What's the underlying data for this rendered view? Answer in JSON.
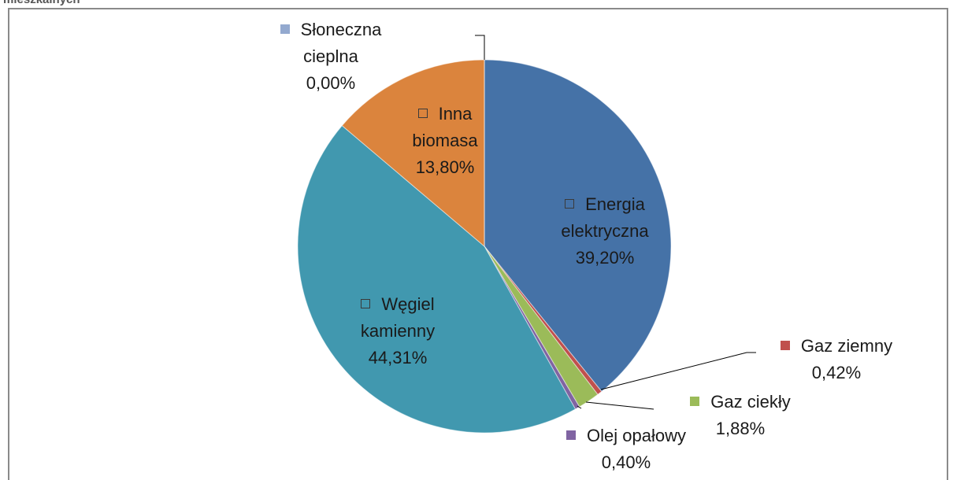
{
  "chart_data": {
    "type": "pie",
    "title": "mieszkalnych",
    "categories": [
      "Energia elektryczna",
      "Gaz ziemny",
      "Gaz ciekły",
      "Olej opałowy",
      "Węgiel kamienny",
      "Inna biomasa",
      "Słoneczna cieplna"
    ],
    "values": [
      39.2,
      0.42,
      1.88,
      0.4,
      44.31,
      13.8,
      0.0
    ],
    "value_labels": [
      "39,20%",
      "0,42%",
      "1,88%",
      "0,40%",
      "44,31%",
      "13,80%",
      "0,00%"
    ],
    "colors": [
      "#4572A7",
      "#C0504D",
      "#9BBB59",
      "#8064A2",
      "#4198AF",
      "#DB843D",
      "#93A9CF"
    ]
  }
}
